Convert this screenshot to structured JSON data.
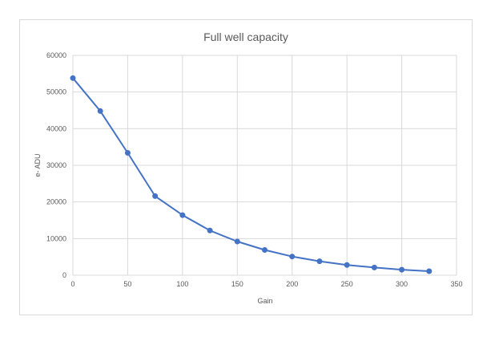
{
  "chart_data": {
    "type": "line",
    "title": "Full well capacity",
    "xlabel": "Gain",
    "ylabel": "e- ADU",
    "xlim": [
      0,
      350
    ],
    "ylim": [
      0,
      60000
    ],
    "xticks": [
      0,
      50,
      100,
      150,
      200,
      250,
      300,
      350
    ],
    "yticks": [
      0,
      10000,
      20000,
      30000,
      40000,
      50000,
      60000
    ],
    "grid": true,
    "legend": "none",
    "colors": {
      "series": "#4472c4",
      "grid": "#d9d9d9",
      "text": "#595959"
    },
    "series": [
      {
        "x": [
          0,
          25,
          50,
          75,
          100,
          125,
          150,
          175,
          200,
          225,
          250,
          275,
          300,
          325
        ],
        "values": [
          53800,
          44800,
          33400,
          21600,
          16400,
          12200,
          9200,
          6900,
          5100,
          3800,
          2800,
          2100,
          1500,
          1100
        ]
      }
    ]
  }
}
